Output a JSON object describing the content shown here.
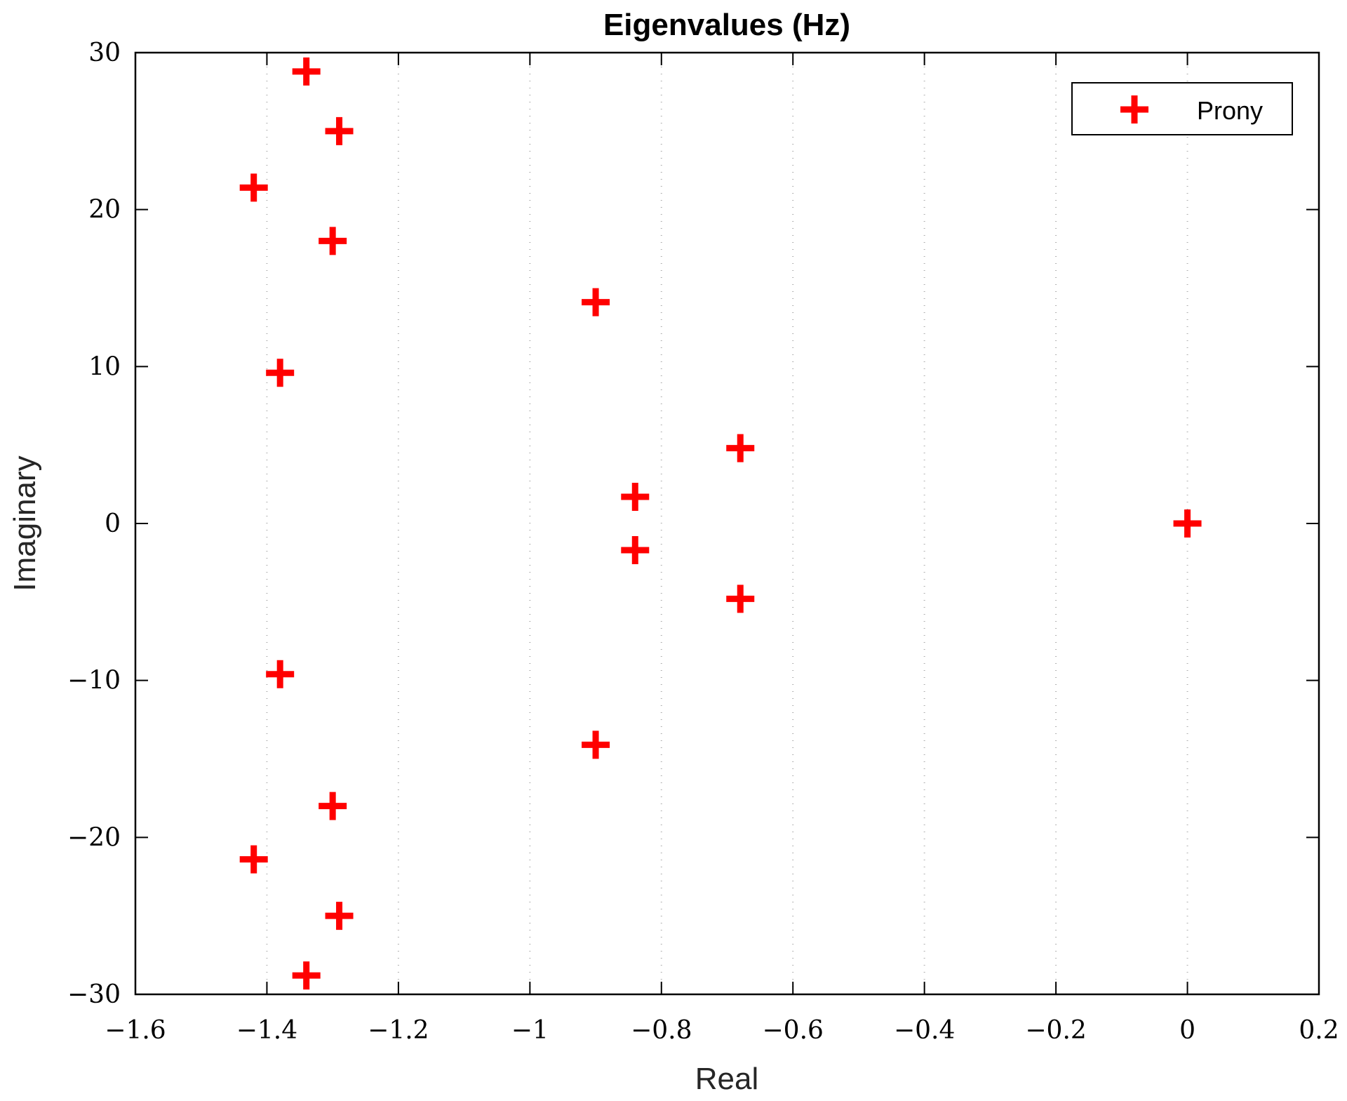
{
  "chart_data": {
    "type": "scatter",
    "title": "Eigenvalues (Hz)",
    "xlabel": "Real",
    "ylabel": "Imaginary",
    "xlim": [
      -1.6,
      0.2
    ],
    "ylim": [
      -30,
      30
    ],
    "xticks": [
      -1.6,
      -1.4,
      -1.2,
      -1,
      -0.8,
      -0.6,
      -0.4,
      -0.2,
      0,
      0.2
    ],
    "xtick_labels": [
      "−1.6",
      "−1.4",
      "−1.2",
      "−1",
      "−0.8",
      "−0.6",
      "−0.4",
      "−0.2",
      "0",
      "0.2"
    ],
    "yticks": [
      -30,
      -20,
      -10,
      0,
      10,
      20,
      30
    ],
    "ytick_labels": [
      "−30",
      "−20",
      "−10",
      "0",
      "10",
      "20",
      "30"
    ],
    "grid": "x-dotted",
    "legend_position": "top-right",
    "marker": "plus",
    "color": "#ff0000",
    "series": [
      {
        "name": "Prony",
        "points": [
          {
            "x": -1.34,
            "y": 28.8
          },
          {
            "x": -1.29,
            "y": 25.0
          },
          {
            "x": -1.42,
            "y": 21.4
          },
          {
            "x": -1.3,
            "y": 18.0
          },
          {
            "x": -0.9,
            "y": 14.1
          },
          {
            "x": -1.38,
            "y": 9.6
          },
          {
            "x": -0.68,
            "y": 4.8
          },
          {
            "x": -0.84,
            "y": 1.7
          },
          {
            "x": 0.0,
            "y": 0.0
          },
          {
            "x": -0.84,
            "y": -1.7
          },
          {
            "x": -0.68,
            "y": -4.8
          },
          {
            "x": -1.38,
            "y": -9.6
          },
          {
            "x": -0.9,
            "y": -14.1
          },
          {
            "x": -1.3,
            "y": -18.0
          },
          {
            "x": -1.42,
            "y": -21.4
          },
          {
            "x": -1.29,
            "y": -25.0
          },
          {
            "x": -1.34,
            "y": -28.8
          }
        ]
      }
    ]
  }
}
